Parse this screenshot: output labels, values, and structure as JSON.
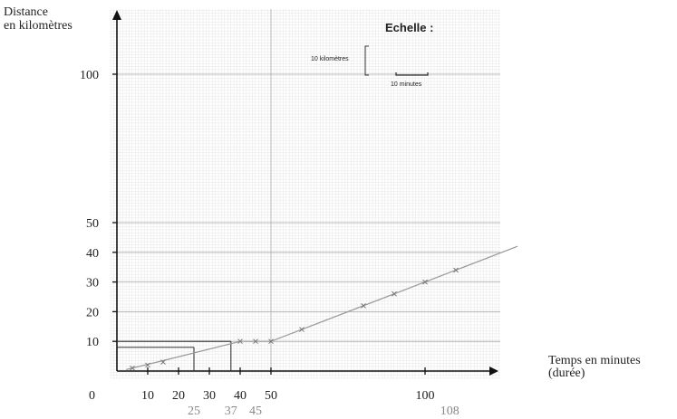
{
  "chart_data": {
    "type": "line",
    "ylabel_lines": [
      "Distance",
      "en kilomètres"
    ],
    "xlabel_lines": [
      "Temps en minutes",
      "(durée)"
    ],
    "origin_label": "0",
    "x_ticks_main": [
      10,
      20,
      30,
      40,
      50,
      100
    ],
    "x_ticks_secondary": [
      25,
      37,
      45,
      108
    ],
    "y_ticks": [
      {
        "label": "10",
        "value": 10
      },
      {
        "label": "20",
        "value": 20
      },
      {
        "label": "30",
        "value": 30
      },
      {
        "label": "40",
        "value": 40
      },
      {
        "label": "50",
        "value": 50
      },
      {
        "label": "100",
        "value": 100
      }
    ],
    "scale_legend": {
      "title": "Echelle :",
      "distance_label": "10 kilomètres",
      "time_label": "10 minutes"
    },
    "series": [
      {
        "points": [
          [
            5,
            1
          ],
          [
            10,
            2
          ],
          [
            15,
            3
          ],
          [
            40,
            10
          ],
          [
            45,
            10
          ],
          [
            50,
            10
          ],
          [
            60,
            14
          ],
          [
            80,
            22
          ],
          [
            90,
            26
          ],
          [
            100,
            30
          ],
          [
            110,
            34
          ]
        ]
      }
    ],
    "line_extension": [
      [
        3,
        0.5
      ],
      [
        15,
        3.5
      ],
      [
        40,
        10
      ],
      [
        50,
        10
      ],
      [
        130,
        42
      ]
    ],
    "reference_lines": [
      {
        "x": 25,
        "y": 8
      },
      {
        "x": 37,
        "y": 10
      }
    ],
    "xlim": [
      0,
      125
    ],
    "ylim": [
      0,
      110
    ]
  }
}
